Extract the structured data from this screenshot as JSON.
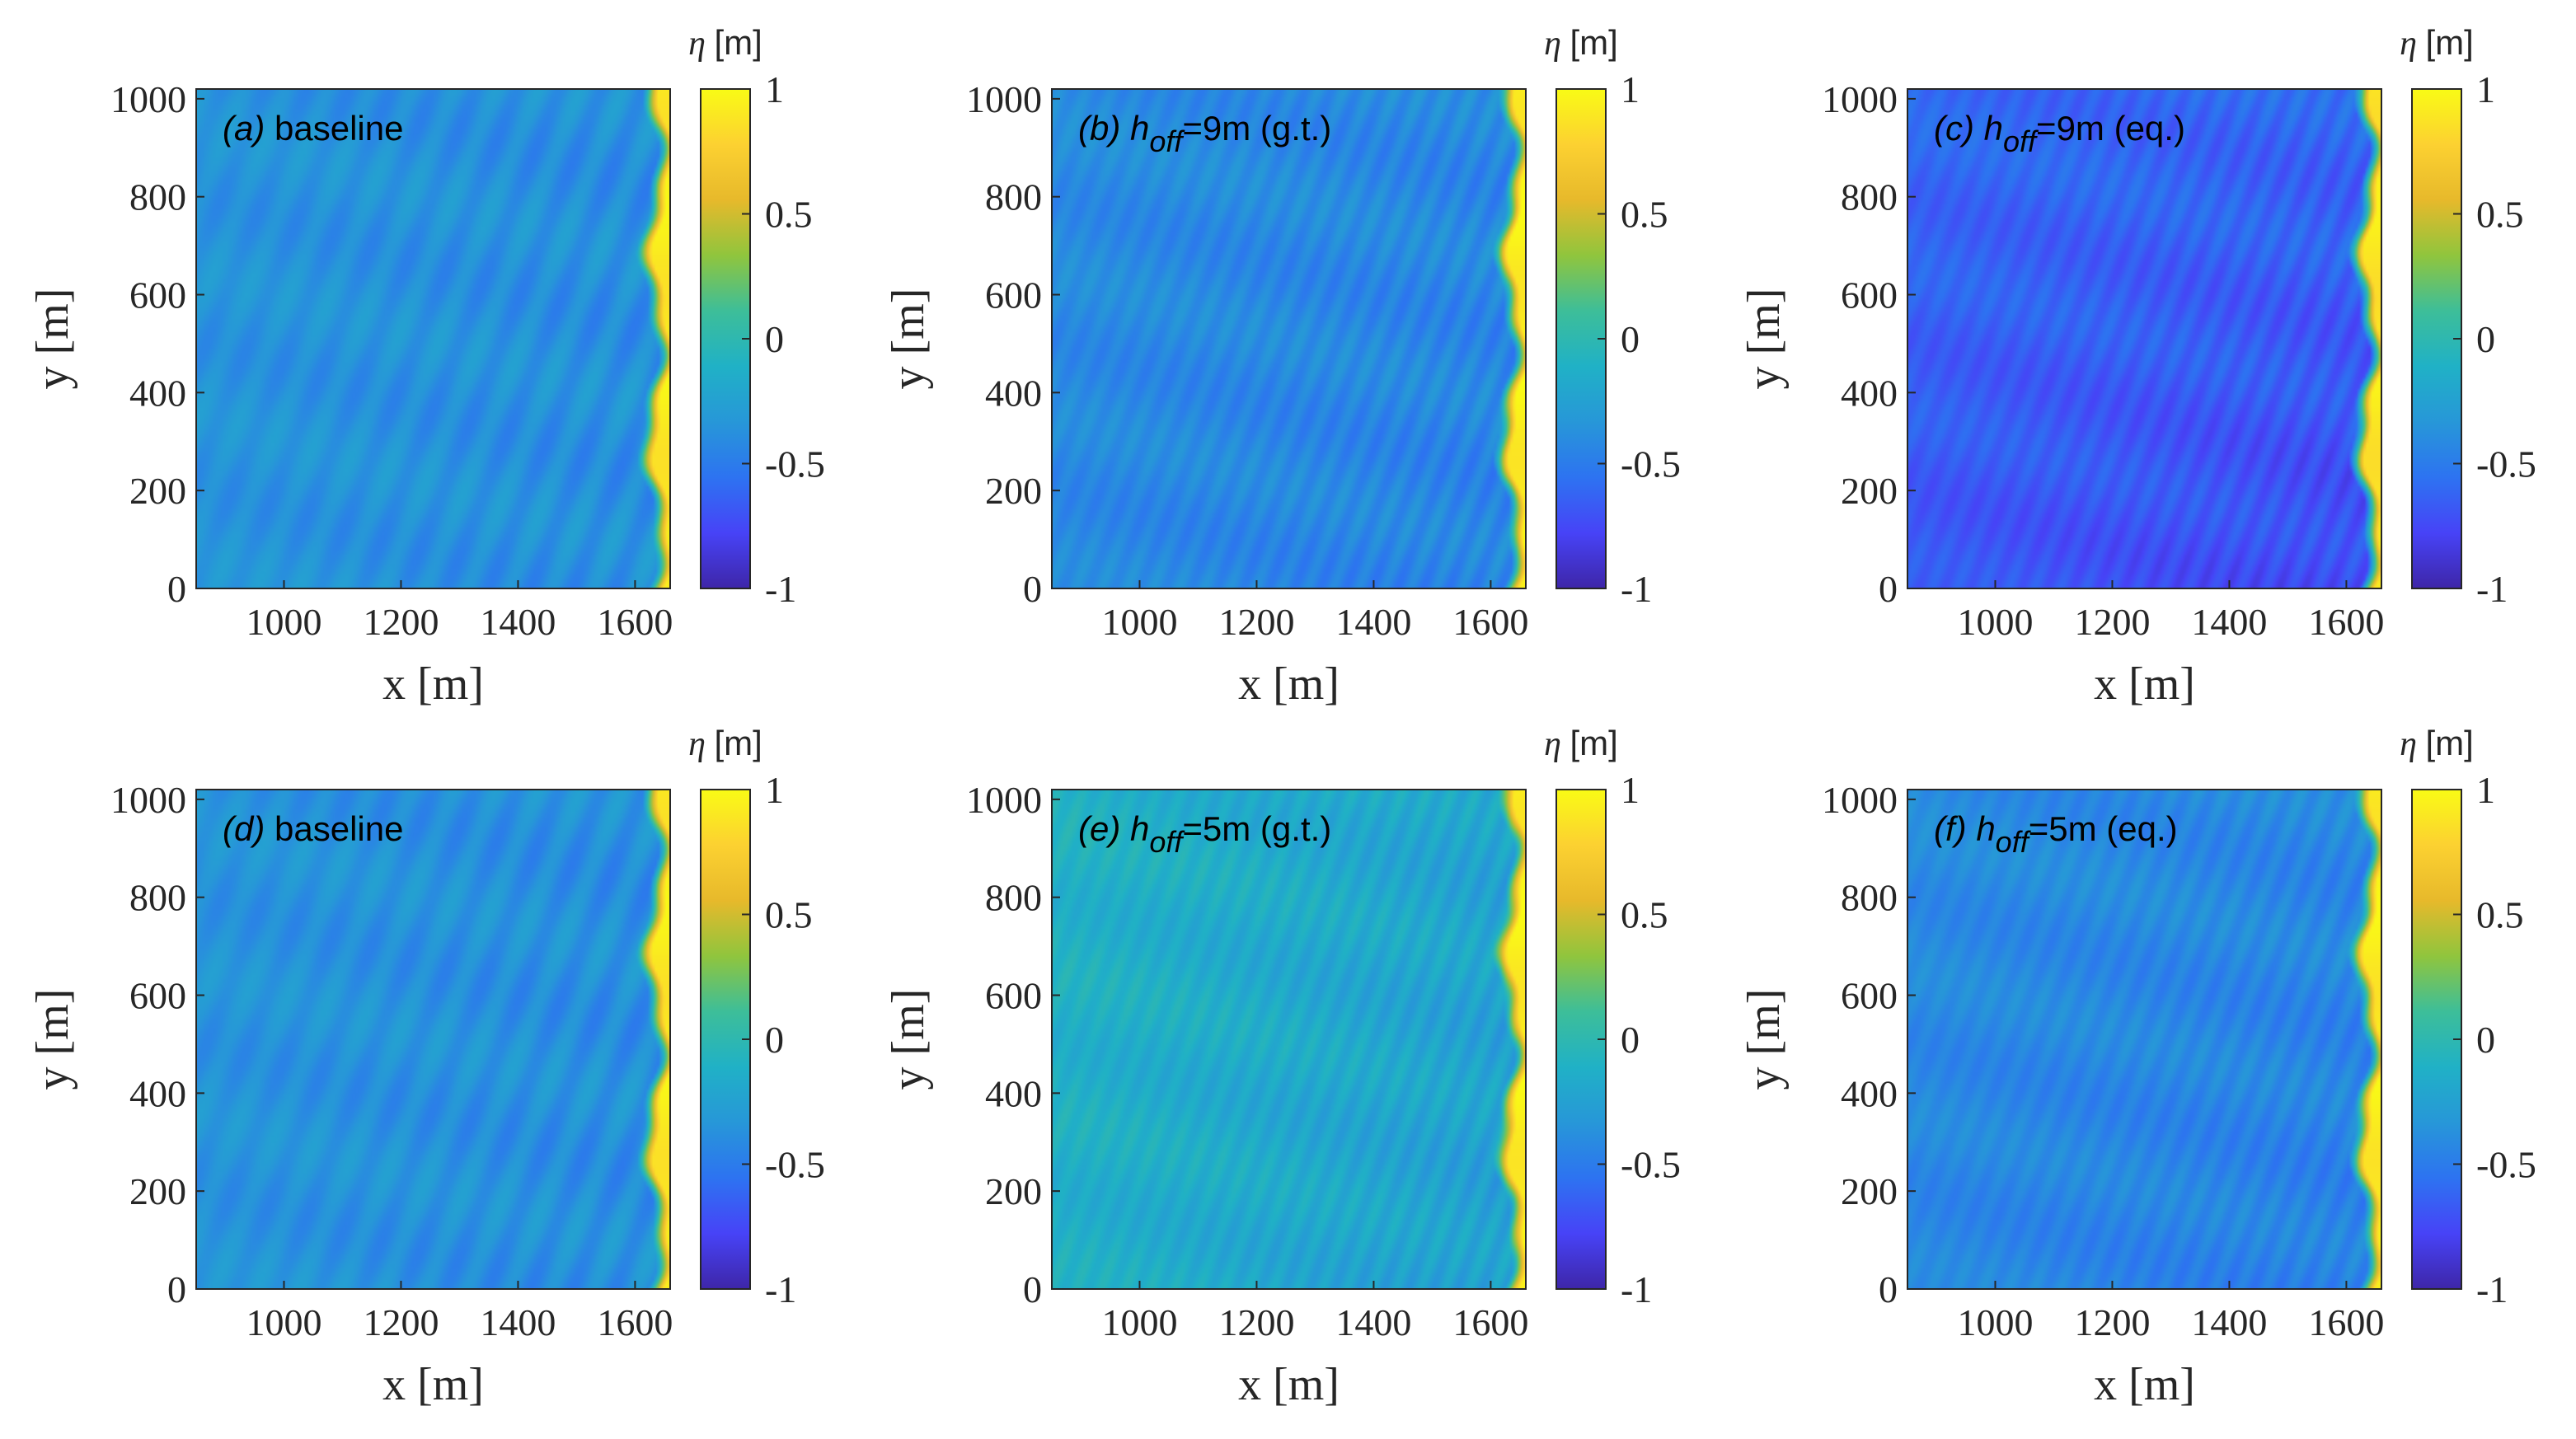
{
  "chart_data": [
    {
      "type": "heatmap",
      "panel_id": "a",
      "panel_tag": "(a)",
      "title_parts": [
        {
          "text": "baseline",
          "style": "normal",
          "sub": false
        }
      ],
      "xlabel": "x [m]",
      "ylabel": "y [m]",
      "xlim": [
        850,
        1660
      ],
      "ylim": [
        0,
        1020
      ],
      "xticks": [
        1000,
        1200,
        1400,
        1600
      ],
      "yticks": [
        0,
        200,
        400,
        600,
        800,
        1000
      ],
      "colorbar": {
        "symbol": "η",
        "unit": "[m]",
        "ticks": [
          1,
          0.5,
          0,
          -0.5,
          -1
        ],
        "range": [
          -1,
          1
        ]
      },
      "field": {
        "base": -0.38,
        "offshore_trend": 0.03,
        "stripe_amp": 0.1,
        "stripe_spacing": 72,
        "stripe_slope": 0.33,
        "shore_max": 0.92,
        "alongshore_drop": 0
      }
    },
    {
      "type": "heatmap",
      "panel_id": "b",
      "panel_tag": "(b)",
      "title_parts": [
        {
          "text": "h",
          "style": "italic",
          "sub": false
        },
        {
          "text": "off",
          "style": "italic",
          "sub": true
        },
        {
          "text": "=9m (g.t.)",
          "style": "normal",
          "sub": false
        }
      ],
      "xlabel": "x [m]",
      "ylabel": "y [m]",
      "xlim": [
        850,
        1660
      ],
      "ylim": [
        0,
        1020
      ],
      "xticks": [
        1000,
        1200,
        1400,
        1600
      ],
      "yticks": [
        0,
        200,
        400,
        600,
        800,
        1000
      ],
      "colorbar": {
        "symbol": "η",
        "unit": "[m]",
        "ticks": [
          1,
          0.5,
          0,
          -0.5,
          -1
        ],
        "range": [
          -1,
          1
        ]
      },
      "field": {
        "base": -0.42,
        "offshore_trend": 0.02,
        "stripe_amp": 0.09,
        "stripe_spacing": 44,
        "stripe_slope": 0.32,
        "shore_max": 0.94,
        "alongshore_drop": 0.03
      }
    },
    {
      "type": "heatmap",
      "panel_id": "c",
      "panel_tag": "(c)",
      "title_parts": [
        {
          "text": "h",
          "style": "italic",
          "sub": false
        },
        {
          "text": "off",
          "style": "italic",
          "sub": true
        },
        {
          "text": "=9m (eq.)",
          "style": "normal",
          "sub": false
        }
      ],
      "xlabel": "x [m]",
      "ylabel": "y [m]",
      "xlim": [
        850,
        1660
      ],
      "ylim": [
        0,
        1020
      ],
      "xticks": [
        1000,
        1200,
        1400,
        1600
      ],
      "yticks": [
        0,
        200,
        400,
        600,
        800,
        1000
      ],
      "colorbar": {
        "symbol": "η",
        "unit": "[m]",
        "ticks": [
          1,
          0.5,
          0,
          -0.5,
          -1
        ],
        "range": [
          -1,
          1
        ]
      },
      "field": {
        "base": -0.6,
        "offshore_trend": 0.0,
        "stripe_amp": 0.09,
        "stripe_spacing": 44,
        "stripe_slope": 0.32,
        "shore_max": 0.9,
        "alongshore_drop": 0.14
      }
    },
    {
      "type": "heatmap",
      "panel_id": "d",
      "panel_tag": "(d)",
      "title_parts": [
        {
          "text": "baseline",
          "style": "normal",
          "sub": false
        }
      ],
      "xlabel": "x [m]",
      "ylabel": "y [m]",
      "xlim": [
        850,
        1660
      ],
      "ylim": [
        0,
        1020
      ],
      "xticks": [
        1000,
        1200,
        1400,
        1600
      ],
      "yticks": [
        0,
        200,
        400,
        600,
        800,
        1000
      ],
      "colorbar": {
        "symbol": "η",
        "unit": "[m]",
        "ticks": [
          1,
          0.5,
          0,
          -0.5,
          -1
        ],
        "range": [
          -1,
          1
        ]
      },
      "field": {
        "base": -0.38,
        "offshore_trend": 0.03,
        "stripe_amp": 0.1,
        "stripe_spacing": 72,
        "stripe_slope": 0.33,
        "shore_max": 0.92,
        "alongshore_drop": 0
      }
    },
    {
      "type": "heatmap",
      "panel_id": "e",
      "panel_tag": "(e)",
      "title_parts": [
        {
          "text": "h",
          "style": "italic",
          "sub": false
        },
        {
          "text": "off",
          "style": "italic",
          "sub": true
        },
        {
          "text": "=5m (g.t.)",
          "style": "normal",
          "sub": false
        }
      ],
      "xlabel": "x [m]",
      "ylabel": "y [m]",
      "xlim": [
        850,
        1660
      ],
      "ylim": [
        0,
        1020
      ],
      "xticks": [
        1000,
        1200,
        1400,
        1600
      ],
      "yticks": [
        0,
        200,
        400,
        600,
        800,
        1000
      ],
      "colorbar": {
        "symbol": "η",
        "unit": "[m]",
        "ticks": [
          1,
          0.5,
          0,
          -0.5,
          -1
        ],
        "range": [
          -1,
          1
        ]
      },
      "field": {
        "base": -0.22,
        "offshore_trend": 0.12,
        "stripe_amp": 0.1,
        "stripe_spacing": 42,
        "stripe_slope": 0.3,
        "shore_max": 0.94,
        "alongshore_drop": 0.04
      }
    },
    {
      "type": "heatmap",
      "panel_id": "f",
      "panel_tag": "(f)",
      "title_parts": [
        {
          "text": "h",
          "style": "italic",
          "sub": false
        },
        {
          "text": "off",
          "style": "italic",
          "sub": true
        },
        {
          "text": "=5m (eq.)",
          "style": "normal",
          "sub": false
        }
      ],
      "xlabel": "x [m]",
      "ylabel": "y [m]",
      "xlim": [
        850,
        1660
      ],
      "ylim": [
        0,
        1020
      ],
      "xticks": [
        1000,
        1200,
        1400,
        1600
      ],
      "yticks": [
        0,
        200,
        400,
        600,
        800,
        1000
      ],
      "colorbar": {
        "symbol": "η",
        "unit": "[m]",
        "ticks": [
          1,
          0.5,
          0,
          -0.5,
          -1
        ],
        "range": [
          -1,
          1
        ]
      },
      "field": {
        "base": -0.42,
        "offshore_trend": 0.02,
        "stripe_amp": 0.08,
        "stripe_spacing": 44,
        "stripe_slope": 0.32,
        "shore_max": 0.93,
        "alongshore_drop": 0.05
      }
    }
  ],
  "colormap": [
    "#3e26a8",
    "#4743f7",
    "#2d73f1",
    "#2797d8",
    "#20b1c6",
    "#3dbe99",
    "#90c53d",
    "#e7b92b",
    "#fcd131",
    "#f9fb15"
  ],
  "colors": {
    "axis": "#262626",
    "background": "#ffffff"
  }
}
